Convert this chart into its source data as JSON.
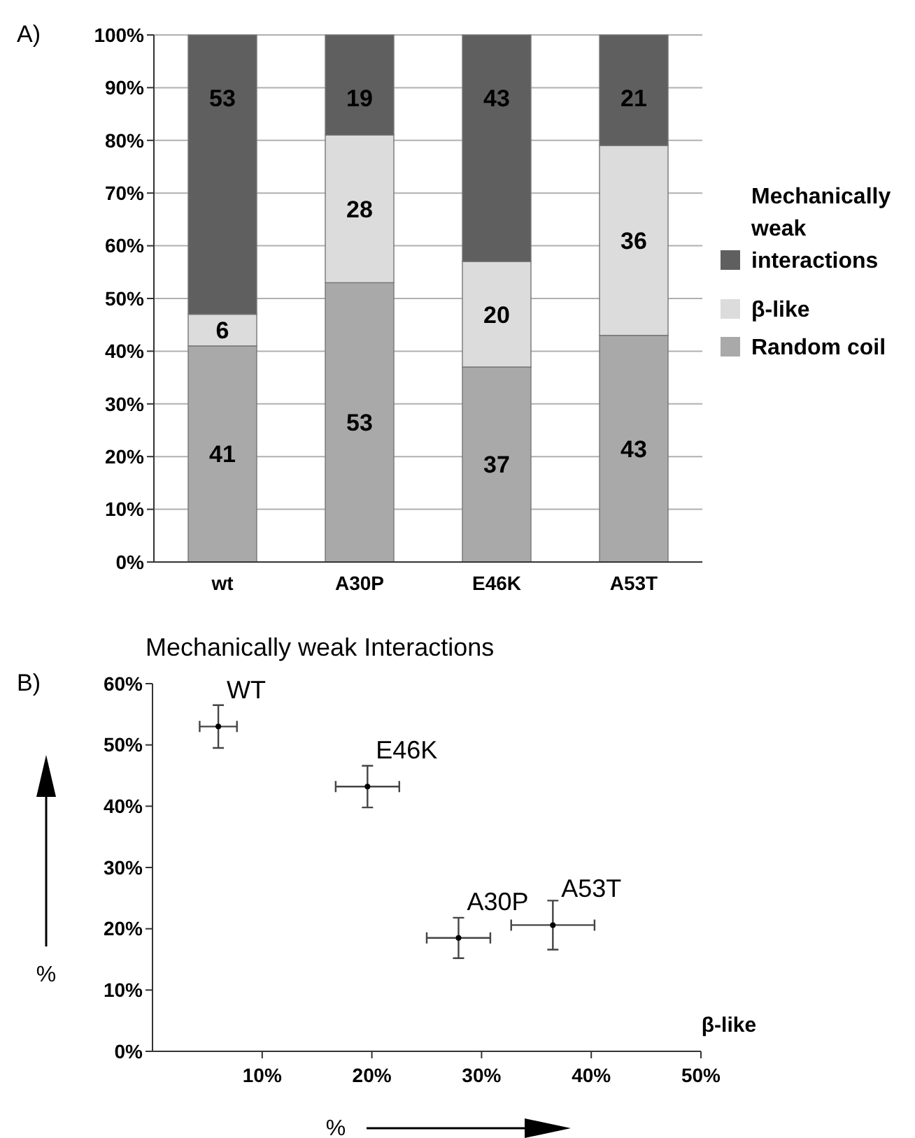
{
  "chart_data": [
    {
      "type": "bar",
      "stacked": true,
      "categories": [
        "wt",
        "A30P",
        "E46K",
        "A53T"
      ],
      "series": [
        {
          "name": "Random coil",
          "color": "#a9a9a9",
          "values": [
            41,
            53,
            37,
            43
          ]
        },
        {
          "name": "β-like",
          "color": "#dcdcdc",
          "values": [
            6,
            28,
            20,
            36
          ]
        },
        {
          "name": "Mechanically weak interactions",
          "color": "#5f5f5f",
          "values": [
            53,
            19,
            43,
            21
          ]
        }
      ],
      "ylim": [
        0,
        100
      ],
      "yticks": [
        {
          "value": 0,
          "label": "0%"
        },
        {
          "value": 10,
          "label": "10%"
        },
        {
          "value": 20,
          "label": "20%"
        },
        {
          "value": 30,
          "label": "30%"
        },
        {
          "value": 40,
          "label": "40%"
        },
        {
          "value": 50,
          "label": "50%"
        },
        {
          "value": 60,
          "label": "60%"
        },
        {
          "value": 70,
          "label": "70%"
        },
        {
          "value": 80,
          "label": "80%"
        },
        {
          "value": 90,
          "label": "90%"
        },
        {
          "value": 100,
          "label": "100%"
        }
      ],
      "grid": "y",
      "legend": "right",
      "data_labels": true,
      "annotations": [
        "A)"
      ]
    },
    {
      "type": "scatter",
      "title": "Mechanically weak Interactions",
      "xlabel": "%",
      "ylabel": "%",
      "x": [
        6,
        19.6,
        27.9,
        36.5
      ],
      "values": [
        53,
        43.2,
        18.5,
        20.6
      ],
      "errors": [
        3.5,
        3.4,
        3.3,
        4
      ],
      "xerrors": [
        1.7,
        2.9,
        2.9,
        3.8
      ],
      "color": "#000000",
      "marker": "circle",
      "xlim": [
        0,
        50
      ],
      "xticks": [
        {
          "value": 10,
          "label": "10%"
        },
        {
          "value": 20,
          "label": "20%"
        },
        {
          "value": 30,
          "label": "30%"
        },
        {
          "value": 40,
          "label": "40%"
        },
        {
          "value": 50,
          "label": "50%"
        }
      ],
      "ylim": [
        0,
        60
      ],
      "yticks": [
        {
          "value": 0,
          "label": "0%"
        },
        {
          "value": 10,
          "label": "10%"
        },
        {
          "value": 20,
          "label": "20%"
        },
        {
          "value": 30,
          "label": "30%"
        },
        {
          "value": 40,
          "label": "40%"
        },
        {
          "value": 50,
          "label": "50%"
        },
        {
          "value": 60,
          "label": "60%"
        }
      ],
      "grid": false,
      "annotations": [
        "B)",
        {
          "text": "WT",
          "x": 6,
          "y": 53
        },
        {
          "text": "E46K",
          "x": 19.6,
          "y": 43.2
        },
        {
          "text": "A30P",
          "x": 27.9,
          "y": 18.5
        },
        {
          "text": "A53T",
          "x": 36.5,
          "y": 20.6
        },
        "β-like"
      ]
    }
  ]
}
